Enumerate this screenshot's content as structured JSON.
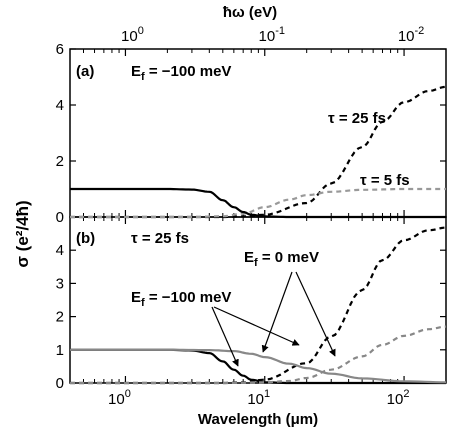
{
  "chart_data": [
    {
      "type": "line",
      "panel_label": "(a)",
      "x_axis": {
        "label": "Wavelength (μm)",
        "scale": "log",
        "range": [
          0.4,
          200
        ],
        "ticks": [
          1,
          10,
          100
        ]
      },
      "top_axis": {
        "label": "ħω (eV)",
        "scale": "log",
        "ticks": [
          1,
          0.1,
          0.01
        ]
      },
      "y_axis": {
        "label": "σ (e²/4ħ)",
        "range": [
          0,
          6
        ],
        "ticks": [
          0,
          2,
          4,
          6
        ]
      },
      "header_note": "E_f = −100 meV",
      "series": [
        {
          "name": "τ = 25 fs",
          "style": "dashed",
          "color": "#000000",
          "line": "interband",
          "x": [
            0.4,
            1,
            3,
            5,
            7,
            10,
            20,
            30,
            50,
            70,
            100,
            150,
            200
          ],
          "y": [
            0,
            0,
            0,
            0,
            0.02,
            0.08,
            0.5,
            1.2,
            2.5,
            3.4,
            4.1,
            4.5,
            4.65
          ]
        },
        {
          "name": "τ = 5 fs",
          "style": "dashed",
          "color": "#999999",
          "line": "interband",
          "x": [
            0.4,
            1,
            3,
            5,
            7,
            10,
            15,
            20,
            30,
            50,
            100,
            200
          ],
          "y": [
            0,
            0,
            0,
            0.03,
            0.12,
            0.35,
            0.62,
            0.78,
            0.9,
            0.97,
            1.0,
            1.0
          ]
        },
        {
          "name": "",
          "style": "solid",
          "color": "#000000",
          "line": "intraband",
          "x": [
            0.4,
            1,
            2,
            3,
            4,
            5,
            6,
            7,
            8,
            10,
            15,
            20,
            200
          ],
          "y": [
            1.0,
            1.0,
            1.0,
            0.98,
            0.9,
            0.6,
            0.35,
            0.18,
            0.08,
            0.02,
            0,
            0,
            0
          ]
        }
      ],
      "annotations": [
        "τ = 25 fs",
        "τ = 5 fs"
      ]
    },
    {
      "type": "line",
      "panel_label": "(b)",
      "x_axis": {
        "label": "Wavelength (μm)",
        "scale": "log",
        "range": [
          0.4,
          200
        ],
        "ticks": [
          1,
          10,
          100
        ]
      },
      "y_axis": {
        "label": "σ (e²/4ħ)",
        "range": [
          0,
          5
        ],
        "ticks": [
          0,
          1,
          2,
          3,
          4
        ]
      },
      "header_note": "τ = 25 fs",
      "series": [
        {
          "name": "E_f = −100 meV",
          "style": "solid",
          "color": "#000000",
          "x": [
            0.4,
            1,
            2,
            3,
            4,
            5,
            6,
            7,
            8,
            10,
            15,
            20,
            200
          ],
          "y": [
            1.0,
            1.0,
            1.0,
            0.98,
            0.9,
            0.65,
            0.4,
            0.22,
            0.1,
            0.02,
            0,
            0,
            0
          ]
        },
        {
          "name": "E_f = −100 meV",
          "style": "dashed",
          "color": "#000000",
          "x": [
            0.4,
            1,
            3,
            5,
            7,
            10,
            20,
            30,
            50,
            70,
            100,
            150,
            200
          ],
          "y": [
            0,
            0,
            0,
            0,
            0.02,
            0.1,
            0.6,
            1.4,
            2.8,
            3.7,
            4.3,
            4.6,
            4.68
          ]
        },
        {
          "name": "E_f = 0 meV",
          "style": "solid",
          "color": "#888888",
          "x": [
            0.4,
            1,
            2,
            4,
            6,
            8,
            10,
            15,
            20,
            30,
            50,
            100,
            200
          ],
          "y": [
            1.0,
            1.0,
            1.0,
            0.99,
            0.96,
            0.88,
            0.78,
            0.58,
            0.45,
            0.28,
            0.14,
            0.05,
            0.02
          ]
        },
        {
          "name": "E_f = 0 meV",
          "style": "dashed",
          "color": "#888888",
          "x": [
            0.4,
            5,
            10,
            15,
            20,
            30,
            50,
            70,
            100,
            150,
            200
          ],
          "y": [
            0,
            0,
            0.02,
            0.06,
            0.15,
            0.4,
            0.8,
            1.15,
            1.42,
            1.62,
            1.7
          ]
        }
      ],
      "annotations": [
        "E_f = 0 meV",
        "E_f = −100 meV"
      ]
    }
  ],
  "labels": {
    "top_axis_title": "ħω (eV)",
    "x_axis_title": "Wavelength (μm)",
    "y_axis_title": "σ (e²/4ħ)",
    "panel_a": "(a)",
    "panel_b": "(b)",
    "a_note_E": "E",
    "a_note_sub": "f",
    "a_note_val": " = −100 meV",
    "a_tau25": "τ = 25 fs",
    "a_tau5": "τ = 5 fs",
    "b_note": "τ = 25 fs",
    "b_ef0_E": "E",
    "b_ef0_sub": "f",
    "b_ef0_val": " = 0 meV",
    "b_ef100_E": "E",
    "b_ef100_sub": "f",
    "b_ef100_val": " = −100 meV"
  }
}
